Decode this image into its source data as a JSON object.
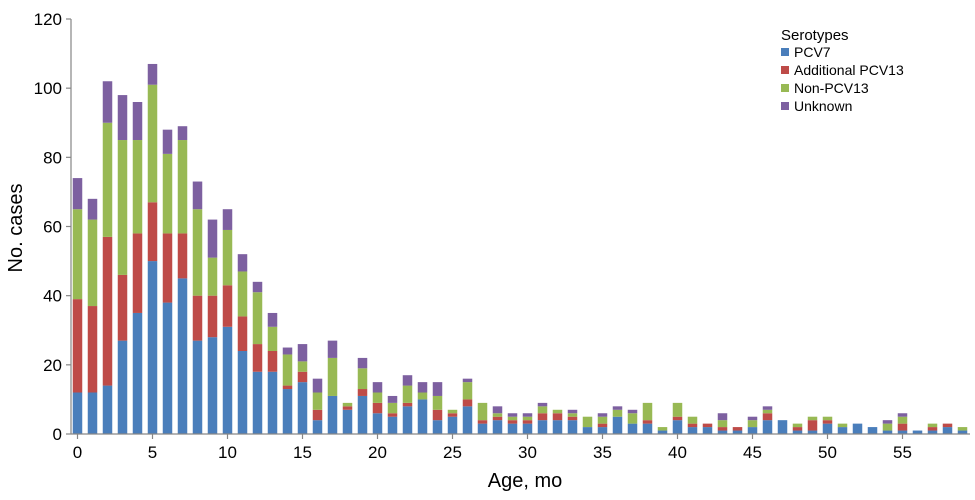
{
  "chart_data": {
    "type": "bar",
    "stacked": true,
    "title": "",
    "xlabel": "Age, mo",
    "ylabel": "No. cases",
    "ylim": [
      0,
      120
    ],
    "y_ticks": [
      0,
      20,
      40,
      60,
      80,
      100,
      120
    ],
    "x_tick_labels": [
      "0",
      "5",
      "10",
      "15",
      "20",
      "25",
      "30",
      "35",
      "40",
      "45",
      "50",
      "55"
    ],
    "x_tick_values": [
      0,
      5,
      10,
      15,
      20,
      25,
      30,
      35,
      40,
      45,
      50,
      55
    ],
    "categories": [
      0,
      1,
      2,
      3,
      4,
      5,
      6,
      7,
      8,
      9,
      10,
      11,
      12,
      13,
      14,
      15,
      16,
      17,
      18,
      19,
      20,
      21,
      22,
      23,
      24,
      25,
      26,
      27,
      28,
      29,
      30,
      31,
      32,
      33,
      34,
      35,
      36,
      37,
      38,
      39,
      40,
      41,
      42,
      43,
      44,
      45,
      46,
      47,
      48,
      49,
      50,
      51,
      52,
      53,
      54,
      55,
      56,
      57,
      58,
      59
    ],
    "legend": {
      "title": "Serotypes",
      "position": "top-right"
    },
    "grid": false,
    "series": [
      {
        "name": "PCV7",
        "color": "#4a7ebb",
        "values": [
          12,
          12,
          14,
          27,
          35,
          50,
          38,
          45,
          27,
          28,
          31,
          24,
          18,
          18,
          13,
          15,
          4,
          11,
          7,
          11,
          6,
          5,
          8,
          10,
          4,
          5,
          8,
          3,
          4,
          3,
          3,
          4,
          4,
          4,
          2,
          2,
          5,
          3,
          3,
          1,
          4,
          2,
          2,
          1,
          1,
          2,
          4,
          4,
          1,
          1,
          3,
          2,
          3,
          2,
          1,
          1,
          1,
          1,
          2,
          1
        ],
        "label_values": []
      },
      {
        "name": "Additional PCV13",
        "color": "#be4b48",
        "values": [
          27,
          25,
          43,
          19,
          23,
          17,
          20,
          13,
          13,
          12,
          12,
          10,
          8,
          6,
          1,
          3,
          3,
          0,
          1,
          2,
          3,
          1,
          1,
          0,
          3,
          1,
          2,
          1,
          1,
          1,
          1,
          2,
          2,
          1,
          0,
          1,
          0,
          0,
          1,
          0,
          1,
          1,
          1,
          1,
          1,
          0,
          2,
          0,
          1,
          3,
          1,
          0,
          0,
          0,
          0,
          2,
          0,
          1,
          1,
          0
        ]
      },
      {
        "name": "Non-PCV13",
        "color": "#98b954",
        "values": [
          26,
          25,
          33,
          39,
          27,
          34,
          23,
          27,
          25,
          11,
          16,
          13,
          15,
          7,
          9,
          3,
          5,
          11,
          1,
          6,
          3,
          3,
          5,
          2,
          4,
          1,
          5,
          5,
          1,
          1,
          1,
          2,
          1,
          1,
          3,
          2,
          2,
          3,
          5,
          1,
          4,
          2,
          0,
          2,
          0,
          2,
          1,
          0,
          1,
          1,
          1,
          1,
          0,
          0,
          2,
          2,
          0,
          1,
          0,
          1
        ]
      },
      {
        "name": "Unknown",
        "color": "#7d60a0",
        "values": [
          9,
          6,
          12,
          13,
          11,
          6,
          7,
          4,
          8,
          11,
          6,
          5,
          3,
          4,
          2,
          5,
          4,
          5,
          0,
          3,
          3,
          2,
          3,
          3,
          4,
          0,
          1,
          0,
          2,
          1,
          1,
          1,
          0,
          1,
          0,
          1,
          1,
          1,
          0,
          0,
          0,
          0,
          0,
          2,
          0,
          1,
          1,
          0,
          0,
          0,
          0,
          0,
          0,
          0,
          1,
          1,
          0,
          0,
          0,
          0
        ]
      }
    ]
  }
}
